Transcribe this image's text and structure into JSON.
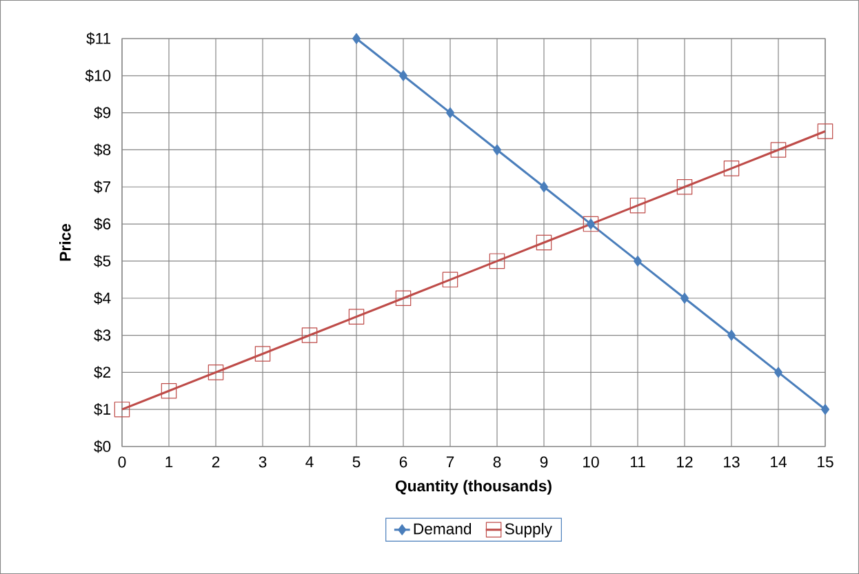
{
  "chart_data": {
    "type": "line",
    "xlabel": "Quantity (thousands)",
    "ylabel": "Price",
    "xlim": [
      0,
      15
    ],
    "ylim": [
      0,
      11
    ],
    "xticks": [
      0,
      1,
      2,
      3,
      4,
      5,
      6,
      7,
      8,
      9,
      10,
      11,
      12,
      13,
      14,
      15
    ],
    "yticks": [
      {
        "value": 0,
        "label": "$0"
      },
      {
        "value": 1,
        "label": "$1"
      },
      {
        "value": 2,
        "label": "$2"
      },
      {
        "value": 3,
        "label": "$3"
      },
      {
        "value": 4,
        "label": "$4"
      },
      {
        "value": 5,
        "label": "$5"
      },
      {
        "value": 6,
        "label": "$6"
      },
      {
        "value": 7,
        "label": "$7"
      },
      {
        "value": 8,
        "label": "$8"
      },
      {
        "value": 9,
        "label": "$9"
      },
      {
        "value": 10,
        "label": "$10"
      },
      {
        "value": 11,
        "label": "$11"
      }
    ],
    "grid": true,
    "legend": "bottom",
    "line_style": "solid",
    "series": [
      {
        "name": "Demand",
        "color": "#4a7ebb",
        "marker": "diamond",
        "x": [
          5,
          6,
          7,
          8,
          9,
          10,
          11,
          12,
          13,
          14,
          15
        ],
        "values": [
          11,
          10,
          9,
          8,
          7,
          6,
          5,
          4,
          3,
          2,
          1
        ]
      },
      {
        "name": "Supply",
        "color": "#be4b48",
        "marker": "square",
        "x": [
          0,
          1,
          2,
          3,
          4,
          5,
          6,
          7,
          8,
          9,
          10,
          11,
          12,
          13,
          14,
          15
        ],
        "values": [
          1,
          1.5,
          2,
          2.5,
          3,
          3.5,
          4,
          4.5,
          5,
          5.5,
          6,
          6.5,
          7,
          7.5,
          8,
          8.5
        ]
      }
    ]
  }
}
